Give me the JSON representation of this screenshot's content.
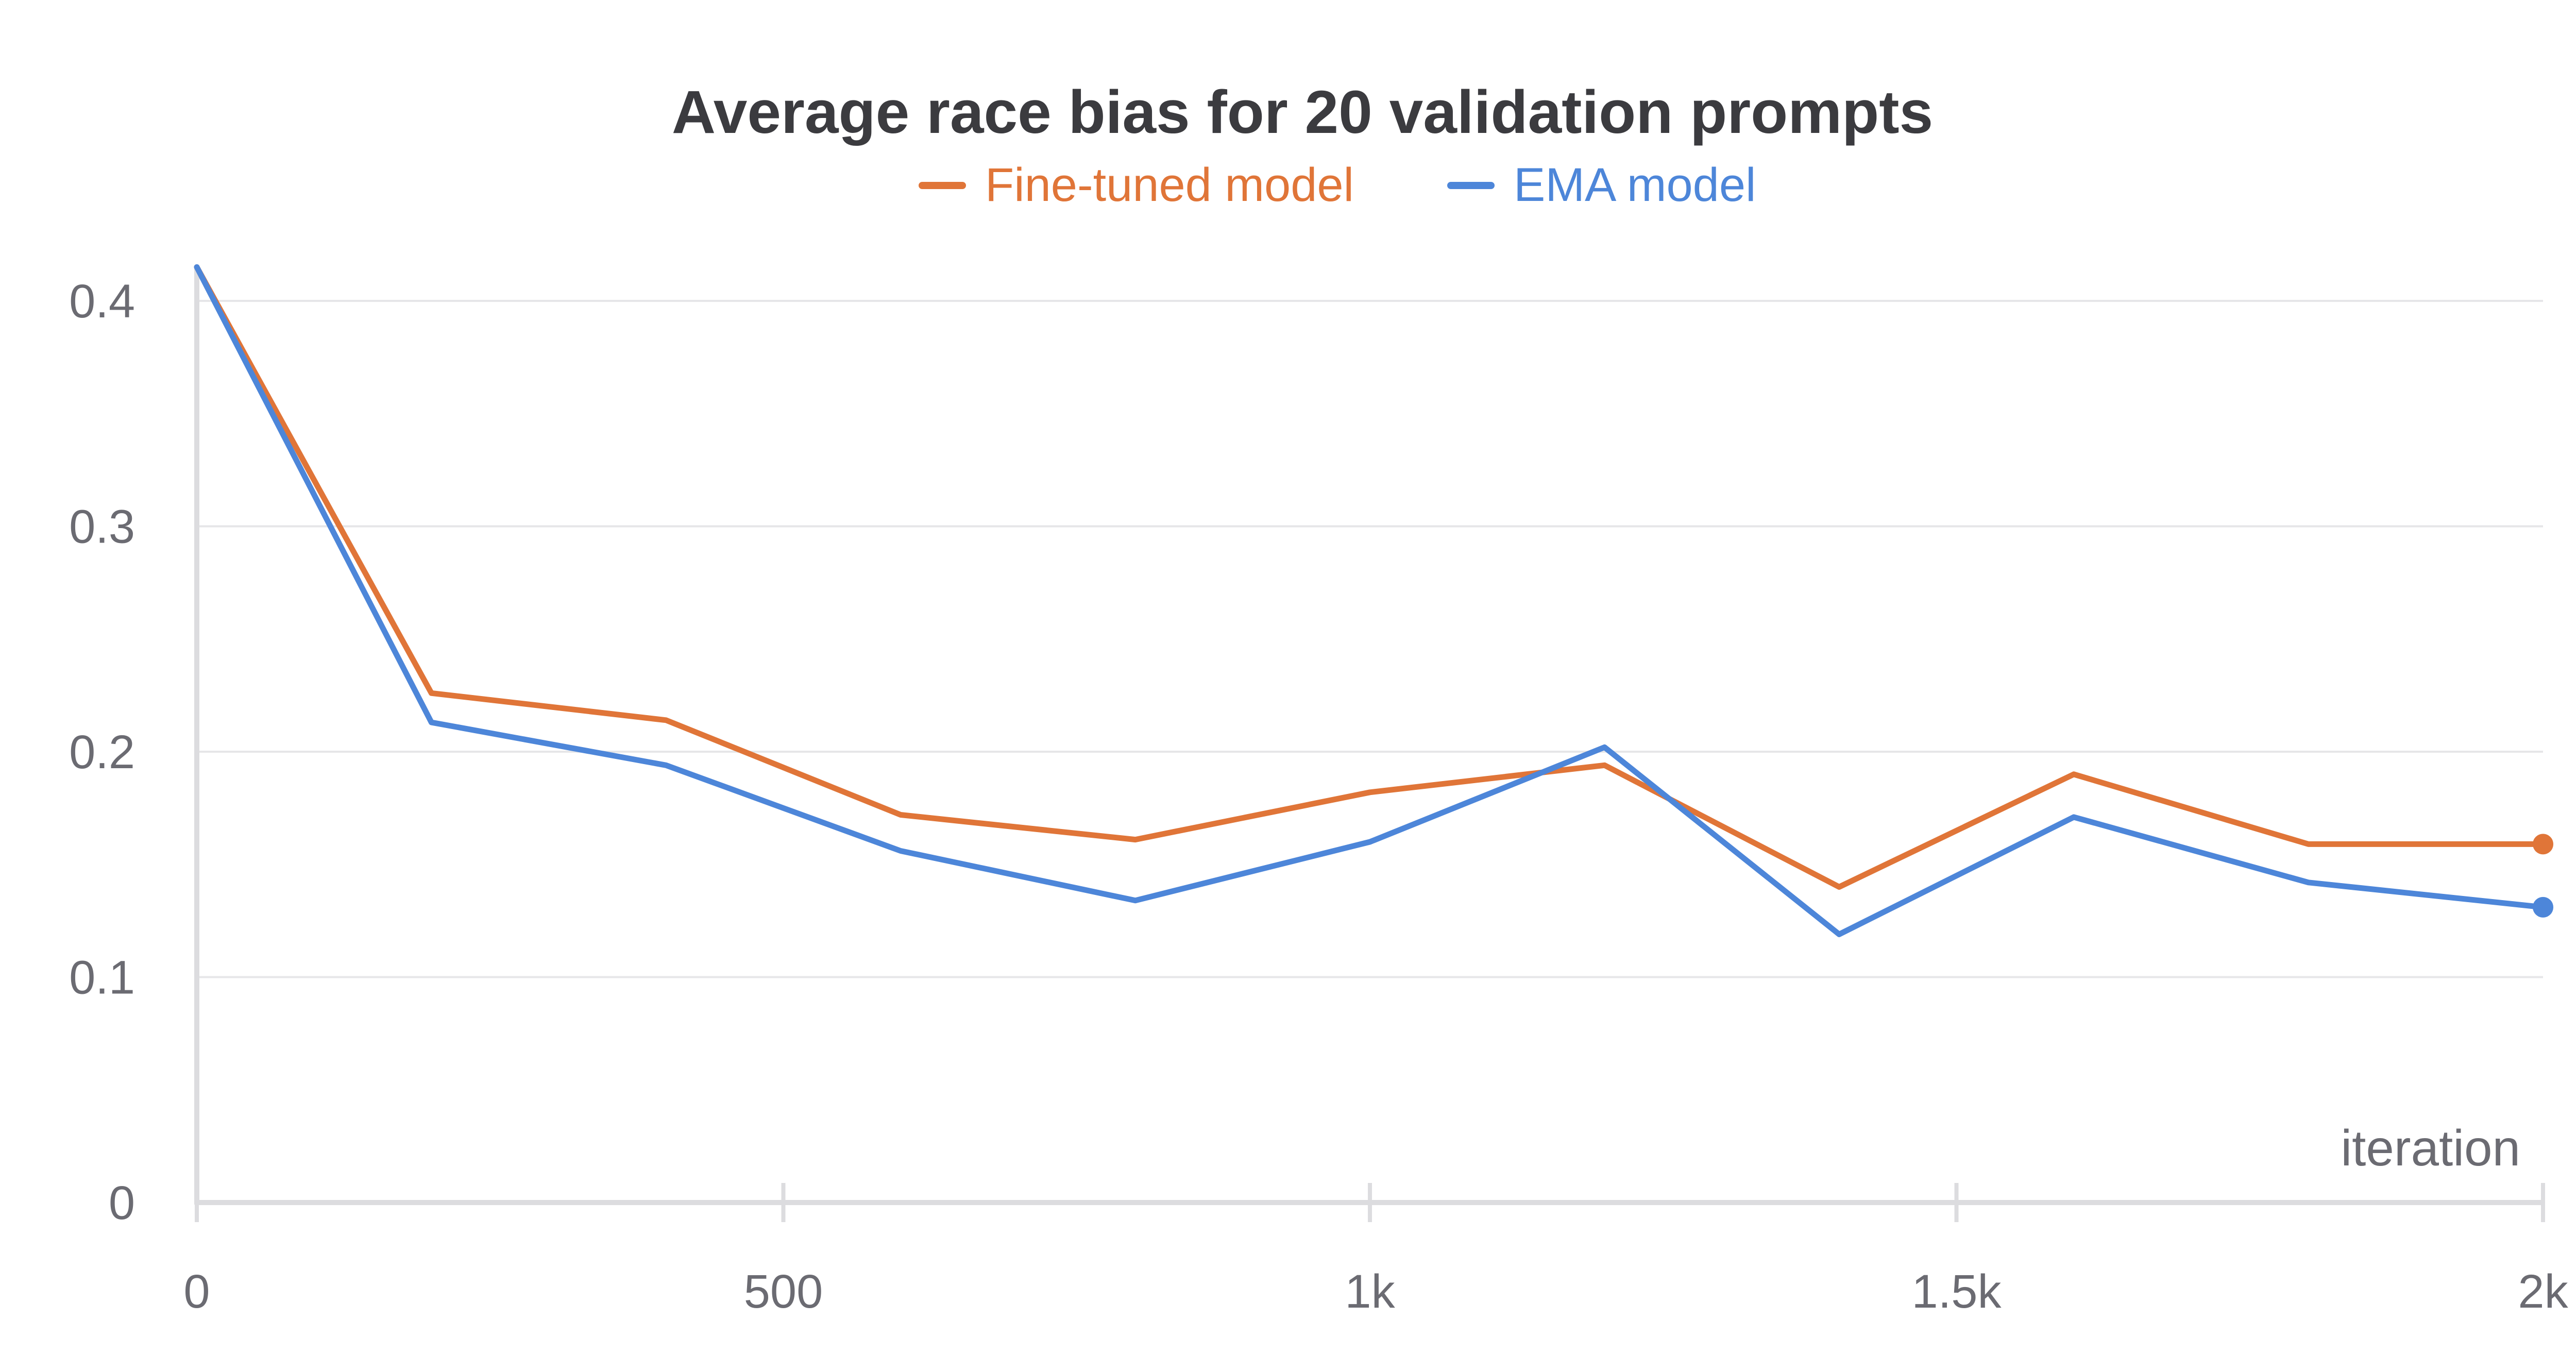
{
  "chart_data": {
    "type": "line",
    "title": "Average race bias for 20 validation prompts",
    "xlabel": "iteration",
    "ylabel": "",
    "xlim": [
      0,
      2000
    ],
    "ylim": [
      0,
      0.42
    ],
    "grid": true,
    "legend_position": "top-center",
    "x_ticks": [
      {
        "value": 0,
        "label": "0"
      },
      {
        "value": 500,
        "label": "500"
      },
      {
        "value": 1000,
        "label": "1k"
      },
      {
        "value": 1500,
        "label": "1.5k"
      },
      {
        "value": 2000,
        "label": "2k"
      }
    ],
    "y_ticks": [
      {
        "value": 0,
        "label": "0"
      },
      {
        "value": 0.1,
        "label": "0.1"
      },
      {
        "value": 0.2,
        "label": "0.2"
      },
      {
        "value": 0.3,
        "label": "0.3"
      },
      {
        "value": 0.4,
        "label": "0.4"
      }
    ],
    "x": [
      0,
      200,
      400,
      600,
      800,
      1000,
      1200,
      1400,
      1600,
      1800,
      2000
    ],
    "series": [
      {
        "name": "Fine-tuned model",
        "color": "#e07538",
        "values": [
          0.415,
          0.226,
          0.214,
          0.172,
          0.161,
          0.182,
          0.194,
          0.14,
          0.19,
          0.159,
          0.159
        ]
      },
      {
        "name": "EMA model",
        "color": "#4d86d9",
        "values": [
          0.415,
          0.213,
          0.194,
          0.156,
          0.134,
          0.16,
          0.202,
          0.119,
          0.171,
          0.142,
          0.131
        ]
      }
    ]
  }
}
